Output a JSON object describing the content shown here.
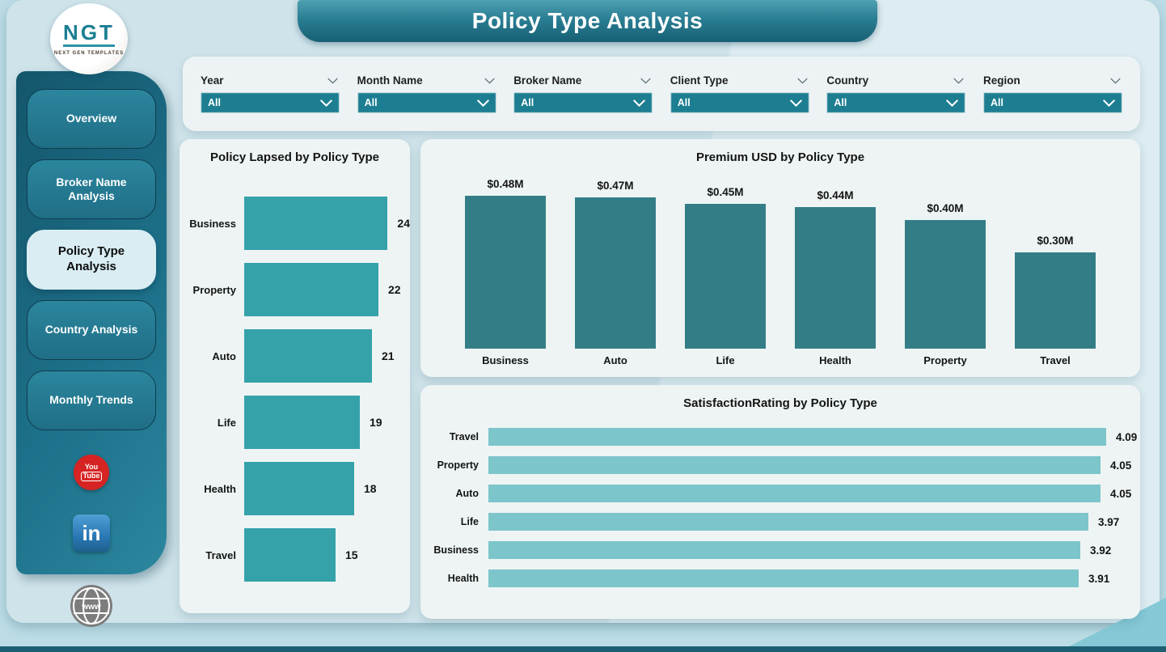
{
  "page": {
    "title": "Policy Type Analysis"
  },
  "logo": {
    "text": "NGT",
    "subtext": "NEXT GEN TEMPLATES"
  },
  "sidebar": {
    "items": [
      {
        "label": "Overview",
        "active": false
      },
      {
        "label": "Broker Name Analysis",
        "active": false
      },
      {
        "label": "Policy Type Analysis",
        "active": true
      },
      {
        "label": "Country Analysis",
        "active": false
      },
      {
        "label": "Monthly Trends",
        "active": false
      }
    ],
    "social": {
      "youtube": {
        "line1": "You",
        "line2": "Tube",
        "color": "#d62423"
      },
      "linkedin": {
        "label": "in",
        "color": "#2a77b5"
      },
      "website": {
        "label": "www",
        "color": "#7d7d7d"
      }
    }
  },
  "filters": [
    {
      "label": "Year",
      "value": "All"
    },
    {
      "label": "Month Name",
      "value": "All"
    },
    {
      "label": "Broker Name",
      "value": "All"
    },
    {
      "label": "Client Type",
      "value": "All"
    },
    {
      "label": "Country",
      "value": "All"
    },
    {
      "label": "Region",
      "value": "All"
    }
  ],
  "colors": {
    "accent_teal": "#1d7e91",
    "lapsed_bar": "#35a2aa",
    "premium_bar": "#337e86",
    "satisfaction_bar": "#7cc5ca",
    "banner_dark": "#175f74",
    "sidebar_dark": "#14566c"
  },
  "chart_data": [
    {
      "type": "bar",
      "orientation": "horizontal",
      "title": "Policy Lapsed by Policy Type",
      "categories": [
        "Business",
        "Property",
        "Auto",
        "Life",
        "Health",
        "Travel"
      ],
      "values": [
        24,
        22,
        21,
        19,
        18,
        15
      ],
      "value_labels": [
        "24",
        "22",
        "21",
        "19",
        "18",
        "15"
      ],
      "xlim": [
        0,
        24
      ],
      "grid": false,
      "legend": "none"
    },
    {
      "type": "bar",
      "orientation": "vertical",
      "title": "Premium USD by Policy Type",
      "categories": [
        "Business",
        "Auto",
        "Life",
        "Health",
        "Property",
        "Travel"
      ],
      "values": [
        0.48,
        0.47,
        0.45,
        0.44,
        0.4,
        0.3
      ],
      "value_labels": [
        "$0.48M",
        "$0.47M",
        "$0.45M",
        "$0.44M",
        "$0.40M",
        "$0.30M"
      ],
      "ylim": [
        0,
        0.48
      ],
      "grid": false,
      "legend": "none"
    },
    {
      "type": "bar",
      "orientation": "horizontal",
      "title": "SatisfactionRating by Policy Type",
      "categories": [
        "Travel",
        "Property",
        "Auto",
        "Life",
        "Business",
        "Health"
      ],
      "values": [
        4.09,
        4.05,
        4.05,
        3.97,
        3.92,
        3.91
      ],
      "value_labels": [
        "4.09",
        "4.05",
        "4.05",
        "3.97",
        "3.92",
        "3.91"
      ],
      "xlim": [
        0,
        4.09
      ],
      "grid": false,
      "legend": "none"
    }
  ]
}
